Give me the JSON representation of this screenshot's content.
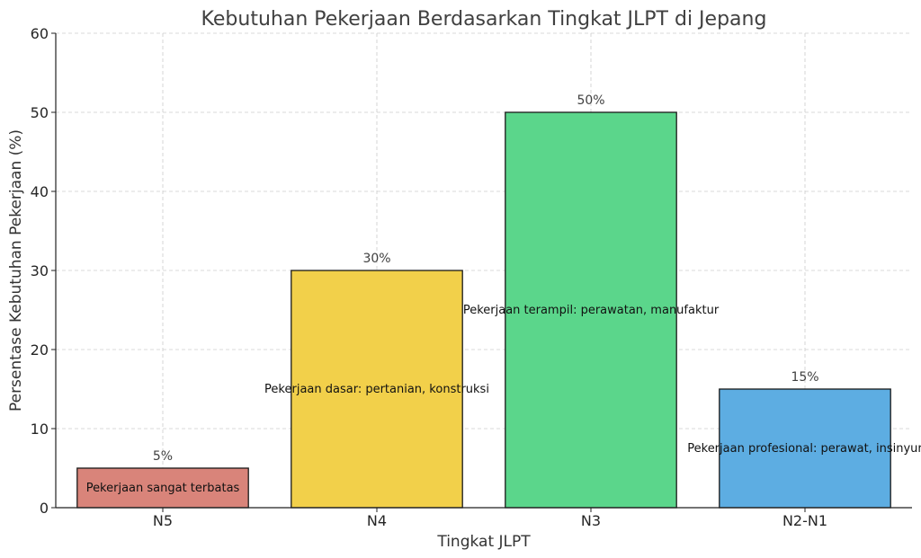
{
  "chart_data": {
    "type": "bar",
    "title": "Kebutuhan Pekerjaan Berdasarkan Tingkat JLPT di Jepang",
    "xlabel": "Tingkat JLPT",
    "ylabel": "Persentase Kebutuhan Pekerjaan (%)",
    "categories": [
      "N5",
      "N4",
      "N3",
      "N2-N1"
    ],
    "values": [
      5,
      30,
      50,
      15
    ],
    "value_labels": [
      "5%",
      "30%",
      "50%",
      "15%"
    ],
    "annotations": [
      "Pekerjaan sangat terbatas",
      "Pekerjaan dasar: pertanian, konstruksi",
      "Pekerjaan terampil: perawatan, manufaktur",
      "Pekerjaan profesional: perawat, insinyur"
    ],
    "colors": [
      "#d9847a",
      "#f2d04a",
      "#5bd68b",
      "#5dade2"
    ],
    "ylim": [
      0,
      60
    ],
    "yticks": [
      0,
      10,
      20,
      30,
      40,
      50,
      60
    ],
    "grid": true
  }
}
